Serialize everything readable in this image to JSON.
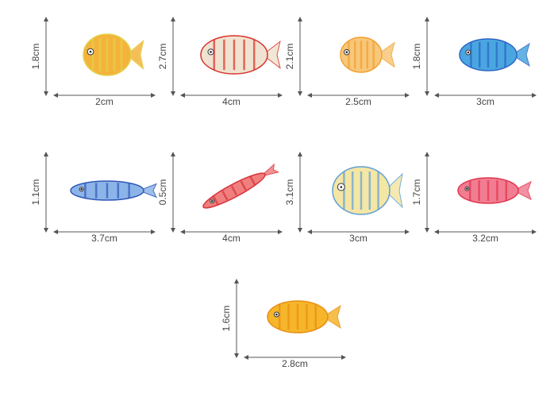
{
  "items": [
    {
      "height": "1.8cm",
      "width": "2cm"
    },
    {
      "height": "2.7cm",
      "width": "4cm"
    },
    {
      "height": "2.1cm",
      "width": "2.5cm"
    },
    {
      "height": "1.8cm",
      "width": "3cm"
    },
    {
      "height": "1.1cm",
      "width": "3.7cm"
    },
    {
      "height": "0.5cm",
      "width": "4cm"
    },
    {
      "height": "3.1cm",
      "width": "3cm"
    },
    {
      "height": "1.7cm",
      "width": "3.2cm"
    },
    {
      "height": "1.6cm",
      "width": "2.8cm"
    }
  ]
}
